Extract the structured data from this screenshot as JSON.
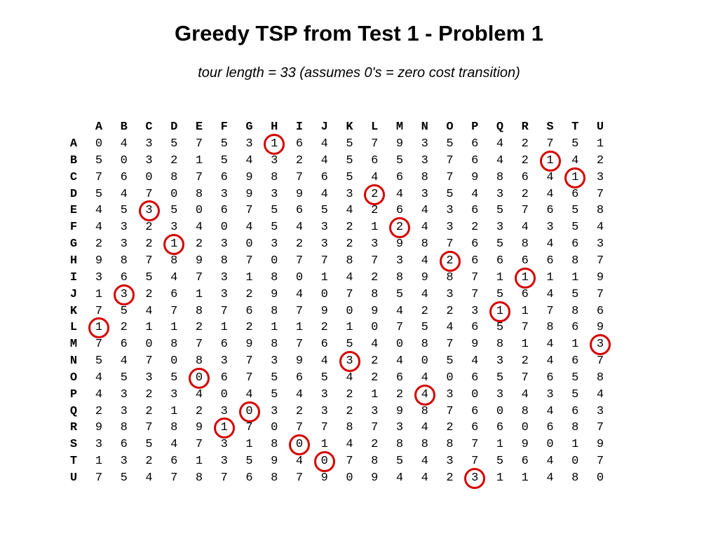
{
  "title": "Greedy TSP from Test 1 - Problem 1",
  "subtitle": "tour length = 33 (assumes 0's = zero cost transition)",
  "matrix": {
    "columns": [
      "A",
      "B",
      "C",
      "D",
      "E",
      "F",
      "G",
      "H",
      "I",
      "J",
      "K",
      "L",
      "M",
      "N",
      "O",
      "P",
      "Q",
      "R",
      "S",
      "T",
      "U"
    ],
    "rows": [
      {
        "label": "A",
        "values": [
          0,
          4,
          3,
          5,
          7,
          5,
          3,
          1,
          6,
          4,
          5,
          7,
          9,
          3,
          5,
          6,
          4,
          2,
          7,
          5,
          1
        ]
      },
      {
        "label": "B",
        "values": [
          5,
          0,
          3,
          2,
          1,
          5,
          4,
          3,
          2,
          4,
          5,
          6,
          5,
          3,
          7,
          6,
          4,
          2,
          1,
          4,
          2
        ]
      },
      {
        "label": "C",
        "values": [
          7,
          6,
          0,
          8,
          7,
          6,
          9,
          8,
          7,
          6,
          5,
          4,
          6,
          8,
          7,
          9,
          8,
          6,
          4,
          1,
          3
        ]
      },
      {
        "label": "D",
        "values": [
          5,
          4,
          7,
          0,
          8,
          3,
          9,
          3,
          9,
          4,
          3,
          2,
          4,
          3,
          5,
          4,
          3,
          2,
          4,
          6,
          7
        ]
      },
      {
        "label": "E",
        "values": [
          4,
          5,
          3,
          5,
          0,
          6,
          7,
          5,
          6,
          5,
          4,
          2,
          6,
          4,
          3,
          6,
          5,
          7,
          6,
          5,
          8
        ]
      },
      {
        "label": "F",
        "values": [
          4,
          3,
          2,
          3,
          4,
          0,
          4,
          5,
          4,
          3,
          2,
          1,
          2,
          4,
          3,
          2,
          3,
          4,
          3,
          5,
          4
        ]
      },
      {
        "label": "G",
        "values": [
          2,
          3,
          2,
          1,
          2,
          3,
          0,
          3,
          2,
          3,
          2,
          3,
          9,
          8,
          7,
          6,
          5,
          8,
          4,
          6,
          3
        ]
      },
      {
        "label": "H",
        "values": [
          9,
          8,
          7,
          8,
          9,
          8,
          7,
          0,
          7,
          7,
          8,
          7,
          3,
          4,
          2,
          6,
          6,
          6,
          6,
          8,
          7
        ]
      },
      {
        "label": "I",
        "values": [
          3,
          6,
          5,
          4,
          7,
          3,
          1,
          8,
          0,
          1,
          4,
          2,
          8,
          9,
          8,
          7,
          1,
          1,
          1,
          1,
          9
        ]
      },
      {
        "label": "J",
        "values": [
          1,
          3,
          2,
          6,
          1,
          3,
          2,
          9,
          4,
          0,
          7,
          8,
          5,
          4,
          3,
          7,
          5,
          6,
          4,
          5,
          7
        ]
      },
      {
        "label": "K",
        "values": [
          7,
          5,
          4,
          7,
          8,
          7,
          6,
          8,
          7,
          9,
          0,
          9,
          4,
          2,
          2,
          3,
          1,
          1,
          7,
          8,
          6
        ]
      },
      {
        "label": "L",
        "values": [
          1,
          2,
          1,
          1,
          2,
          1,
          2,
          1,
          1,
          2,
          1,
          0,
          7,
          5,
          4,
          6,
          5,
          7,
          8,
          6,
          9
        ]
      },
      {
        "label": "M",
        "values": [
          7,
          6,
          0,
          8,
          7,
          6,
          9,
          8,
          7,
          6,
          5,
          4,
          0,
          8,
          7,
          9,
          8,
          1,
          4,
          1,
          3
        ]
      },
      {
        "label": "N",
        "values": [
          5,
          4,
          7,
          0,
          8,
          3,
          7,
          3,
          9,
          4,
          3,
          2,
          4,
          0,
          5,
          4,
          3,
          2,
          4,
          6,
          7
        ]
      },
      {
        "label": "O",
        "values": [
          4,
          5,
          3,
          5,
          0,
          6,
          7,
          5,
          6,
          5,
          4,
          2,
          6,
          4,
          0,
          6,
          5,
          7,
          6,
          5,
          8
        ]
      },
      {
        "label": "P",
        "values": [
          4,
          3,
          2,
          3,
          4,
          0,
          4,
          5,
          4,
          3,
          2,
          1,
          2,
          4,
          3,
          0,
          3,
          4,
          3,
          5,
          4
        ]
      },
      {
        "label": "Q",
        "values": [
          2,
          3,
          2,
          1,
          2,
          3,
          0,
          3,
          2,
          3,
          2,
          3,
          9,
          8,
          7,
          6,
          0,
          8,
          4,
          6,
          3
        ]
      },
      {
        "label": "R",
        "values": [
          9,
          8,
          7,
          8,
          9,
          1,
          7,
          0,
          7,
          7,
          8,
          7,
          3,
          4,
          2,
          6,
          6,
          0,
          6,
          8,
          7
        ]
      },
      {
        "label": "S",
        "values": [
          3,
          6,
          5,
          4,
          7,
          3,
          1,
          8,
          0,
          1,
          4,
          2,
          8,
          8,
          8,
          7,
          1,
          9,
          0,
          1,
          9
        ]
      },
      {
        "label": "T",
        "values": [
          1,
          3,
          2,
          6,
          1,
          3,
          5,
          9,
          4,
          0,
          7,
          8,
          5,
          4,
          3,
          7,
          5,
          6,
          4,
          0,
          7
        ]
      },
      {
        "label": "U",
        "values": [
          7,
          5,
          4,
          7,
          8,
          7,
          6,
          8,
          7,
          9,
          0,
          9,
          4,
          4,
          2,
          3,
          1,
          1,
          4,
          8,
          0
        ]
      }
    ],
    "circled": [
      [
        0,
        7
      ],
      [
        1,
        18
      ],
      [
        2,
        19
      ],
      [
        3,
        11
      ],
      [
        4,
        2
      ],
      [
        5,
        12
      ],
      [
        6,
        3
      ],
      [
        7,
        14
      ],
      [
        8,
        17
      ],
      [
        9,
        1
      ],
      [
        10,
        16
      ],
      [
        11,
        0
      ],
      [
        12,
        20
      ],
      [
        13,
        10
      ],
      [
        14,
        4
      ],
      [
        15,
        13
      ],
      [
        16,
        6
      ],
      [
        17,
        5
      ],
      [
        18,
        8
      ],
      [
        19,
        9
      ],
      [
        20,
        15
      ]
    ],
    "circle_color": "#d40000"
  }
}
